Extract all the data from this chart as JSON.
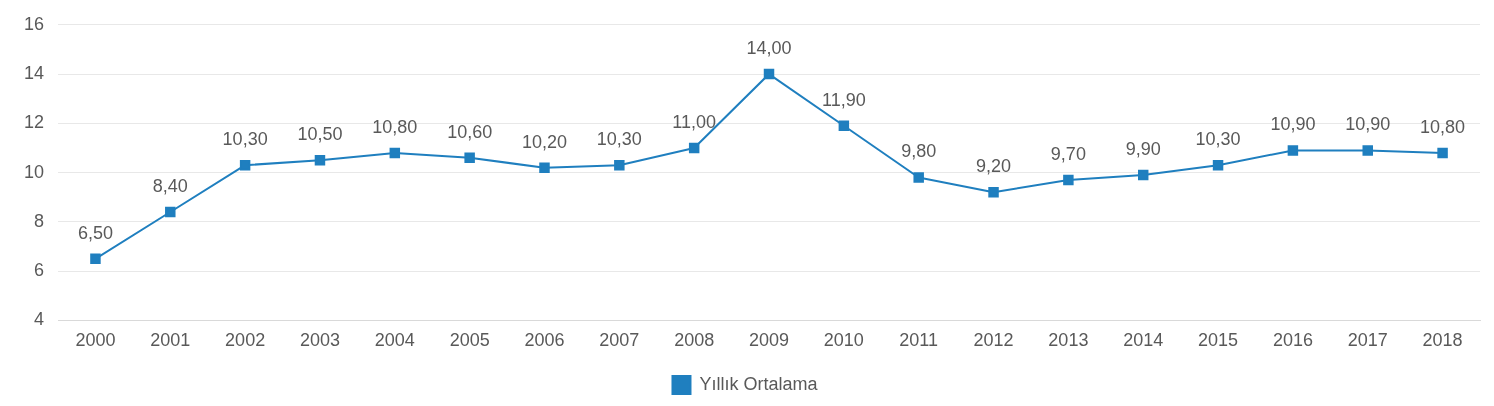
{
  "chart_data": {
    "type": "line",
    "categories": [
      "2000",
      "2001",
      "2002",
      "2003",
      "2004",
      "2005",
      "2006",
      "2007",
      "2008",
      "2009",
      "2010",
      "2011",
      "2012",
      "2013",
      "2014",
      "2015",
      "2016",
      "2017",
      "2018"
    ],
    "series": [
      {
        "name": "Yıllık Ortalama",
        "color": "#1f7fbf",
        "values": [
          6.5,
          8.4,
          10.3,
          10.5,
          10.8,
          10.6,
          10.2,
          10.3,
          11.0,
          14.0,
          11.9,
          9.8,
          9.2,
          9.7,
          9.9,
          10.3,
          10.9,
          10.9,
          10.8
        ],
        "value_labels": [
          "6,50",
          "8,40",
          "10,30",
          "10,50",
          "10,80",
          "10,60",
          "10,20",
          "10,30",
          "11,00",
          "14,00",
          "11,90",
          "9,80",
          "9,20",
          "9,70",
          "9,90",
          "10,30",
          "10,90",
          "10,90",
          "10,80"
        ]
      }
    ],
    "ylim": [
      4,
      16
    ],
    "yticks": [
      4,
      6,
      8,
      10,
      12,
      14,
      16
    ],
    "grid": "y",
    "legend": "bottom",
    "marker": "square",
    "line_style": "solid"
  }
}
